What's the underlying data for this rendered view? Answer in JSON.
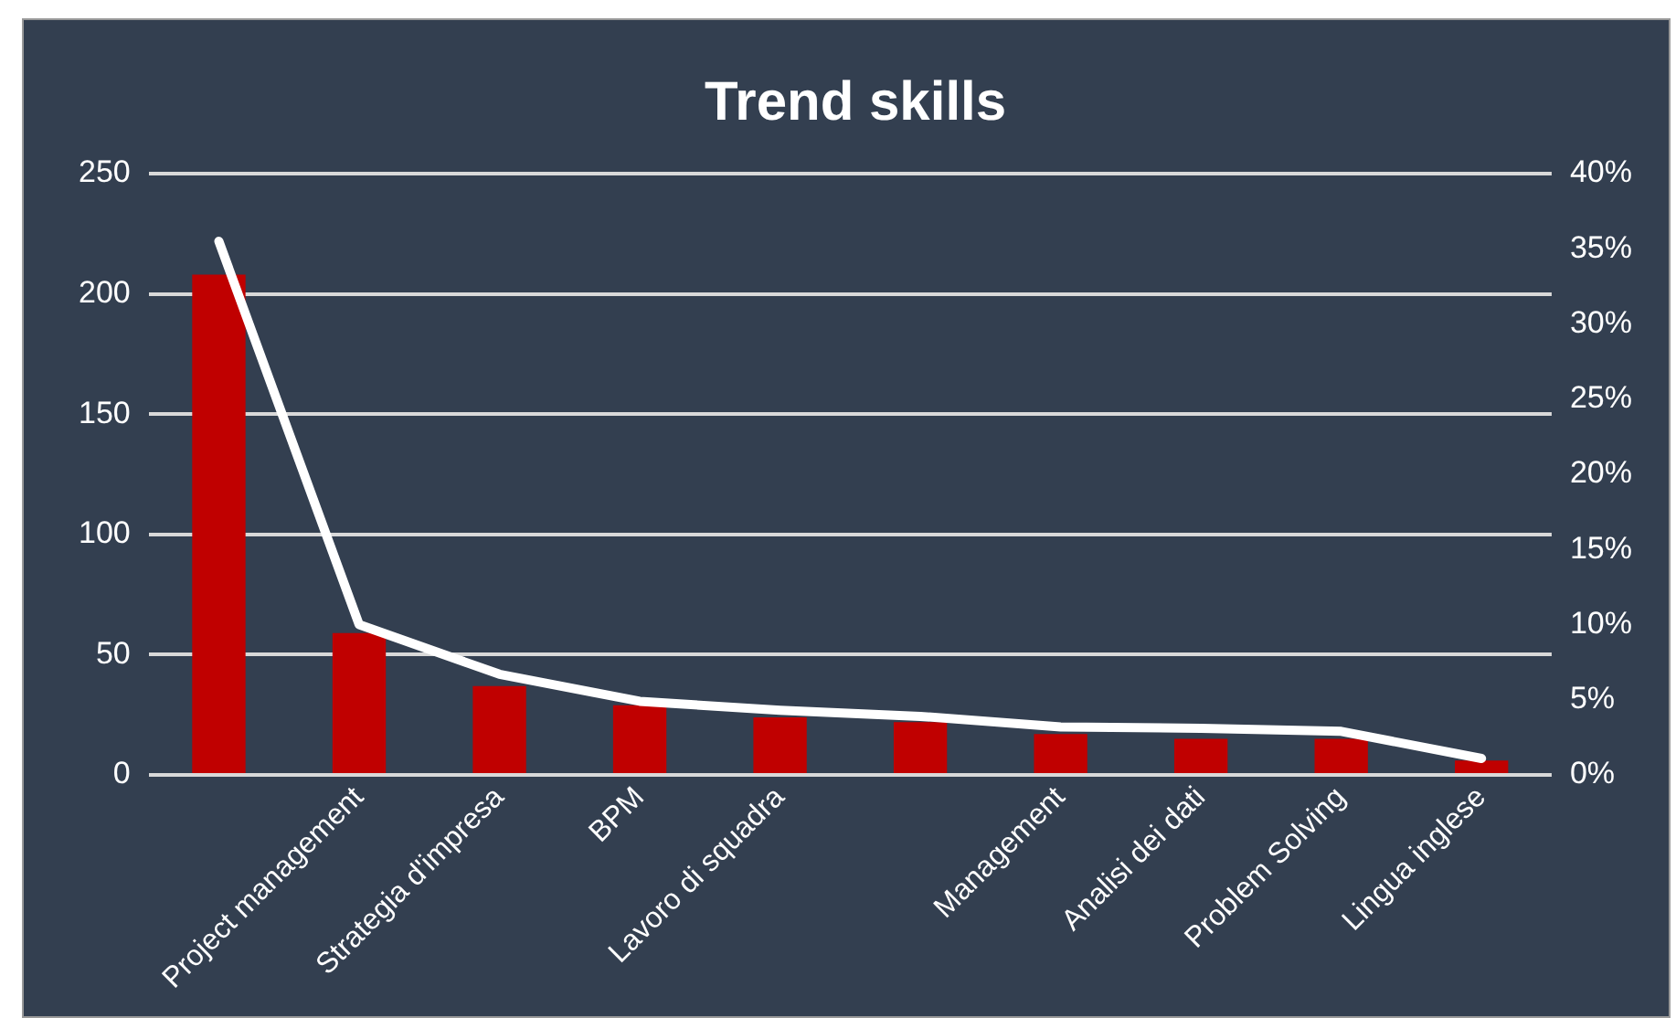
{
  "chart_data": {
    "type": "bar",
    "title": "Trend skills",
    "categories": [
      null,
      "Project management",
      "Strategia d'impresa",
      "BPM",
      "Lavoro di squadra",
      null,
      "Management",
      "Analisi dei dati",
      "Problem Solving",
      "Lingua inglese"
    ],
    "series": [
      {
        "color": "#c00000",
        "values": [
          208,
          59,
          37,
          29,
          24,
          22,
          17,
          15,
          15,
          6
        ]
      },
      {
        "type": "line",
        "axis": "y2",
        "color": "#ffffff",
        "values": [
          35.5,
          10,
          6.7,
          4.9,
          4.3,
          3.9,
          3.2,
          3.1,
          2.9,
          1.1
        ]
      }
    ],
    "ylim": [
      0,
      250
    ],
    "yticks": [
      0,
      50,
      100,
      150,
      200,
      250
    ],
    "y2lim": [
      0,
      40
    ],
    "y2ticks": [
      {
        "value": 0,
        "label": "0%"
      },
      {
        "value": 5,
        "label": "5%"
      },
      {
        "value": 10,
        "label": "10%"
      },
      {
        "value": 15,
        "label": "15%"
      },
      {
        "value": 20,
        "label": "20%"
      },
      {
        "value": 25,
        "label": "25%"
      },
      {
        "value": 30,
        "label": "30%"
      },
      {
        "value": 35,
        "label": "35%"
      },
      {
        "value": 40,
        "label": "40%"
      }
    ],
    "grid": "y",
    "legend": false,
    "marker": "none"
  }
}
